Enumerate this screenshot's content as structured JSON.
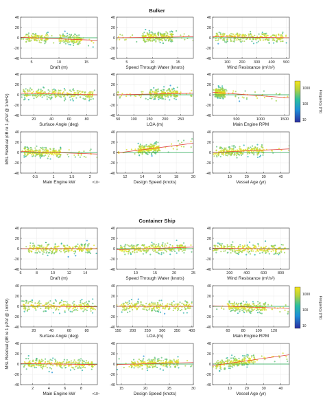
{
  "figure": {
    "ylabel": "MSL Residual (dB re 1 μPa² @ 1m/Hz)",
    "colorbar_label": "Frequency (Hz)"
  },
  "chart_data": [
    {
      "type": "scatter",
      "title": "Bulker",
      "ylim": [
        -40,
        40
      ],
      "yticks": [
        -40,
        -20,
        0,
        20,
        40
      ],
      "colorbar": {
        "ticks": [
          "1000",
          "100",
          "10"
        ]
      },
      "panels": [
        {
          "xlabel": "Draft (m)",
          "xlim": [
            3,
            17
          ],
          "xticks": [
            5,
            10,
            15
          ],
          "x_multiplier": "",
          "fit": [
            [
              3,
              1
            ],
            [
              17,
              -5
            ]
          ],
          "clusters": [
            [
              [
                4,
                8
              ],
              1
            ],
            [
              [
                10,
                14
              ],
              0.7
            ]
          ]
        },
        {
          "xlabel": "Speed Through Water (knots)",
          "xlim": [
            3,
            18
          ],
          "xticks": [
            5,
            10,
            15
          ],
          "x_multiplier": "",
          "fit": [
            [
              3,
              0
            ],
            [
              18,
              2
            ]
          ],
          "clusters": [
            [
              [
                8,
                14
              ],
              1
            ]
          ]
        },
        {
          "xlabel": "Wind Resistance (m²/s²)",
          "xlim": [
            0,
            520
          ],
          "xticks": [
            100,
            200,
            300,
            400,
            500
          ],
          "x_multiplier": "",
          "fit": [
            [
              0,
              2
            ],
            [
              520,
              0
            ]
          ],
          "clusters": [
            [
              [
                20,
                480
              ],
              1
            ]
          ]
        },
        {
          "xlabel": "Surface Angle (deg)",
          "xlim": [
            5,
            92
          ],
          "xticks": [
            20,
            40,
            60,
            80
          ],
          "x_multiplier": "",
          "fit": [
            [
              5,
              3
            ],
            [
              92,
              0
            ]
          ],
          "clusters": [
            [
              [
                8,
                90
              ],
              1
            ]
          ]
        },
        {
          "xlabel": "LOA (m)",
          "xlim": [
            45,
            290
          ],
          "xticks": [
            50,
            100,
            150,
            200,
            250
          ],
          "x_multiplier": "",
          "fit": [
            [
              45,
              0
            ],
            [
              290,
              3
            ]
          ],
          "clusters": [
            [
              [
                150,
                240
              ],
              1
            ]
          ]
        },
        {
          "xlabel": "Main Engine RPM",
          "xlim": [
            0,
            1600
          ],
          "xticks": [
            500,
            1000,
            1500
          ],
          "x_multiplier": "",
          "fit": [
            [
              0,
              5
            ],
            [
              1600,
              -6
            ]
          ],
          "clusters": [
            [
              [
                50,
                260
              ],
              1
            ]
          ]
        },
        {
          "xlabel": "Main Engine kW",
          "xlim": [
            1000,
            22000
          ],
          "xticks": [
            5000,
            10000,
            15000,
            20000
          ],
          "xticklabels": [
            "0.5",
            "1",
            "1.5",
            "2"
          ],
          "x_multiplier": "×10⁴",
          "fit": [
            [
              1000,
              2
            ],
            [
              22000,
              -3
            ]
          ],
          "clusters": [
            [
              [
                2000,
                12000
              ],
              1
            ]
          ]
        },
        {
          "xlabel": "Design Speed (knots)",
          "xlim": [
            11,
            20
          ],
          "xticks": [
            12,
            14,
            16,
            18,
            20
          ],
          "x_multiplier": "",
          "fit": [
            [
              11,
              -1
            ],
            [
              20,
              18
            ]
          ],
          "clusters": [
            [
              [
                13.5,
                16
              ],
              1
            ]
          ]
        },
        {
          "xlabel": "Vessel Age (yr)",
          "xlim": [
            0,
            45
          ],
          "xticks": [
            10,
            20,
            30,
            40
          ],
          "x_multiplier": "",
          "fit": [
            [
              0,
              0
            ],
            [
              45,
              7
            ]
          ],
          "clusters": [
            [
              [
                2,
                30
              ],
              1
            ]
          ]
        }
      ]
    },
    {
      "type": "scatter",
      "title": "Container Ship",
      "ylim": [
        -40,
        40
      ],
      "yticks": [
        -40,
        -20,
        0,
        20,
        40
      ],
      "colorbar": {
        "ticks": [
          "1000",
          "100",
          "10"
        ]
      },
      "panels": [
        {
          "xlabel": "Draft (m)",
          "xlim": [
            6,
            15.5
          ],
          "xticks": [
            6,
            8,
            10,
            12,
            14
          ],
          "x_multiplier": "",
          "fit": [
            [
              6,
              0
            ],
            [
              15.5,
              0
            ]
          ],
          "clusters": [
            [
              [
                7,
                15
              ],
              1
            ]
          ]
        },
        {
          "xlabel": "Speed Through Water (knots)",
          "xlim": [
            5,
            25
          ],
          "xticks": [
            10,
            15,
            20,
            25
          ],
          "x_multiplier": "",
          "fit": [
            [
              5,
              -2
            ],
            [
              25,
              3
            ]
          ],
          "clusters": [
            [
              [
                6,
                23
              ],
              1
            ]
          ]
        },
        {
          "xlabel": "Wind Resistance (m²/s²)",
          "xlim": [
            0,
            900
          ],
          "xticks": [
            200,
            400,
            600,
            800
          ],
          "x_multiplier": "",
          "fit": [
            [
              0,
              1
            ],
            [
              900,
              -1
            ]
          ],
          "clusters": [
            [
              [
                20,
                850
              ],
              1
            ]
          ]
        },
        {
          "xlabel": "Surface Angle (deg)",
          "xlim": [
            5,
            92
          ],
          "xticks": [
            20,
            40,
            60,
            80
          ],
          "x_multiplier": "",
          "fit": [
            [
              5,
              1
            ],
            [
              92,
              -1
            ]
          ],
          "clusters": [
            [
              [
                8,
                90
              ],
              1
            ]
          ]
        },
        {
          "xlabel": "LOA (m)",
          "xlim": [
            145,
            405
          ],
          "xticks": [
            150,
            200,
            250,
            300,
            350,
            400
          ],
          "x_multiplier": "",
          "fit": [
            [
              145,
              0
            ],
            [
              405,
              0
            ]
          ],
          "clusters": [
            [
              [
                160,
                400
              ],
              1
            ]
          ]
        },
        {
          "xlabel": "Main Engine RPM",
          "xlim": [
            40,
            140
          ],
          "xticks": [
            60,
            80,
            100,
            120
          ],
          "x_multiplier": "",
          "fit": [
            [
              40,
              1
            ],
            [
              140,
              -4
            ]
          ],
          "clusters": [
            [
              [
                60,
                110
              ],
              1
            ]
          ]
        },
        {
          "xlabel": "Main Engine kW",
          "xlim": [
            5000,
            100000
          ],
          "xticks": [
            20000,
            40000,
            60000,
            80000
          ],
          "xticklabels": [
            "2",
            "4",
            "6",
            "8"
          ],
          "x_multiplier": "×10⁴",
          "fit": [
            [
              5000,
              1
            ],
            [
              100000,
              -1
            ]
          ],
          "clusters": [
            [
              [
                10000,
                95000
              ],
              1
            ]
          ]
        },
        {
          "xlabel": "Design Speed (knots)",
          "xlim": [
            14,
            30
          ],
          "xticks": [
            15,
            20,
            25,
            30
          ],
          "x_multiplier": "",
          "fit": [
            [
              14,
              -1
            ],
            [
              30,
              3
            ]
          ],
          "clusters": [
            [
              [
                17,
                27
              ],
              1
            ]
          ]
        },
        {
          "xlabel": "Vessel Age (yr)",
          "xlim": [
            0,
            45
          ],
          "xticks": [
            10,
            20,
            30,
            40
          ],
          "x_multiplier": "",
          "fit": [
            [
              0,
              -3
            ],
            [
              45,
              18
            ]
          ],
          "clusters": [
            [
              [
                2,
                25
              ],
              1
            ]
          ]
        }
      ]
    }
  ]
}
